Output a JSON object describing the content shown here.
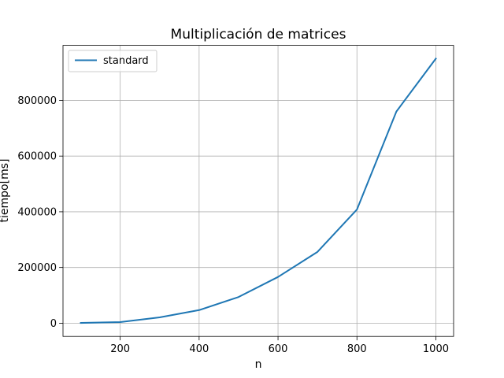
{
  "chart_data": {
    "type": "line",
    "title": "Multiplicación de matrices",
    "xlabel": "n",
    "ylabel": "tiempo[ms]",
    "x": [
      100,
      200,
      300,
      400,
      500,
      600,
      700,
      800,
      900,
      1000
    ],
    "series": [
      {
        "name": "standard",
        "color": "#1f77b4",
        "values": [
          1000,
          4000,
          21000,
          47000,
          94000,
          166000,
          256000,
          408000,
          760000,
          950000
        ]
      }
    ],
    "xlim": [
      55,
      1045
    ],
    "ylim": [
      -47500,
      997500
    ],
    "x_ticks": [
      200,
      400,
      600,
      800,
      1000
    ],
    "x_tick_labels": [
      "200",
      "400",
      "600",
      "800",
      "1000"
    ],
    "y_ticks": [
      0,
      200000,
      400000,
      600000,
      800000
    ],
    "y_tick_labels": [
      "0",
      "200000",
      "400000",
      "600000",
      "800000"
    ],
    "grid": true,
    "legend_position": "top-left"
  }
}
